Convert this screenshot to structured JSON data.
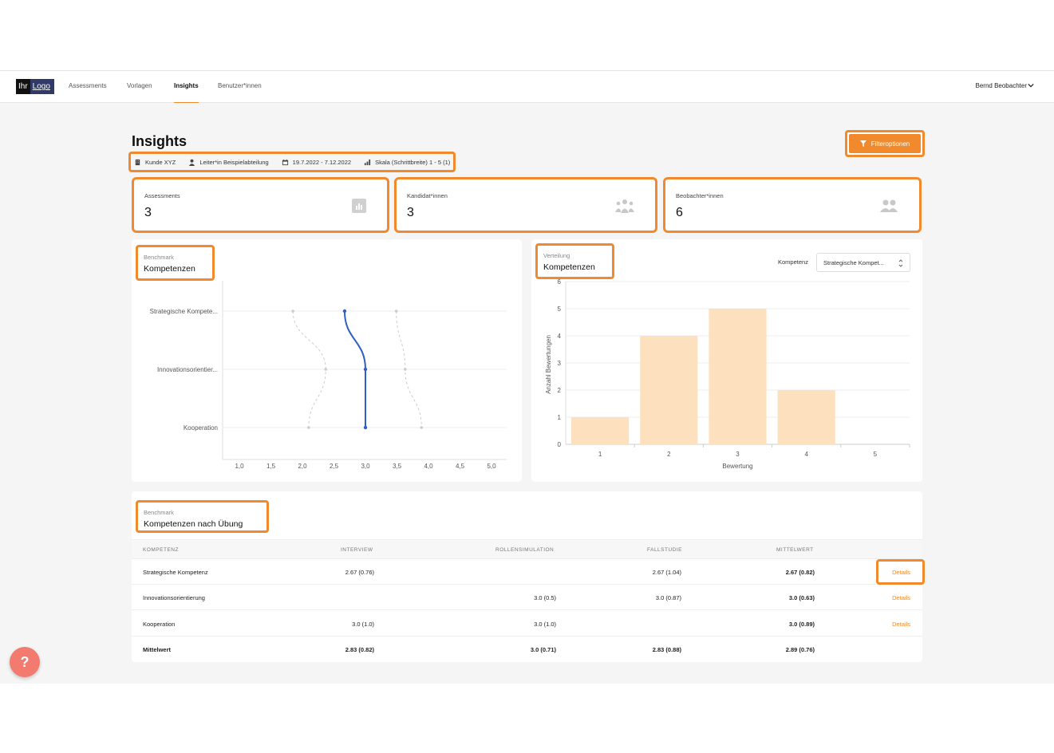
{
  "logo": {
    "part1": "Ihr",
    "part2": "Logo"
  },
  "nav": {
    "items": [
      {
        "label": "Assessments",
        "active": false
      },
      {
        "label": "Vorlagen",
        "active": false
      },
      {
        "label": "Insights",
        "active": true
      },
      {
        "label": "Benutzer*innen",
        "active": false
      }
    ],
    "user": "Bernd Beobachter"
  },
  "page": {
    "title": "Insights",
    "meta": {
      "customer": "Kunde XYZ",
      "role": "Leiter*in Beispielabteilung",
      "daterange": "19.7.2022 - 7.12.2022",
      "scale": "Skala (Schrittbreite) 1 - 5 (1)"
    },
    "filter_button": "Filteroptionen"
  },
  "stats": [
    {
      "label": "Assessments",
      "value": "3",
      "icon": "bar-chart-icon"
    },
    {
      "label": "Kandidat*innen",
      "value": "3",
      "icon": "group-icon"
    },
    {
      "label": "Beobachter*innen",
      "value": "6",
      "icon": "people-icon"
    }
  ],
  "benchmark": {
    "subtitle": "Benchmark",
    "title": "Kompetenzen"
  },
  "verteilung": {
    "subtitle": "Verteilung",
    "title": "Kompetenzen",
    "filter_label": "Kompetenz",
    "select_value": "Strategische Kompet..."
  },
  "table": {
    "subtitle": "Benchmark",
    "title": "Kompetenzen nach Übung",
    "headers": [
      "KOMPETENZ",
      "INTERVIEW",
      "ROLLENSIMULATION",
      "FALLSTUDIE",
      "MITTELWERT"
    ],
    "rows": [
      {
        "name": "Strategische Kompetenz",
        "interview": "2.67 (0.76)",
        "rollen": "",
        "fall": "2.67 (1.04)",
        "mittel": "2.67 (0.82)",
        "details": "Details"
      },
      {
        "name": "Innovationsorientierung",
        "interview": "",
        "rollen": "3.0 (0.5)",
        "fall": "3.0 (0.87)",
        "mittel": "3.0 (0.63)",
        "details": "Details"
      },
      {
        "name": "Kooperation",
        "interview": "3.0 (1.0)",
        "rollen": "3.0 (1.0)",
        "fall": "",
        "mittel": "3.0 (0.89)",
        "details": "Details"
      },
      {
        "name": "Mittelwert",
        "interview": "2.83 (0.82)",
        "rollen": "3.0 (0.71)",
        "fall": "2.83 (0.88)",
        "mittel": "2.89 (0.76)",
        "details": ""
      }
    ]
  },
  "help_label": "?",
  "colors": {
    "accent": "#f08a2c",
    "line": "#2f5fc4",
    "bar": "#fde1bf"
  },
  "chart_data": [
    {
      "type": "line",
      "categories": [
        "Strategische Kompete...",
        "Innovationsorientier...",
        "Kooperation"
      ],
      "x_ticks": [
        "1,0",
        "1,5",
        "2,0",
        "2,5",
        "3,0",
        "3,5",
        "4,0",
        "4,5",
        "5,0"
      ],
      "xlim": [
        1,
        5
      ],
      "series": [
        {
          "values": [
            2.67,
            3.0,
            3.0
          ]
        },
        {
          "values": [
            1.85,
            2.37,
            2.1
          ]
        },
        {
          "values": [
            3.49,
            3.63,
            3.89
          ]
        }
      ],
      "grid": true
    },
    {
      "type": "bar",
      "categories": [
        "1",
        "2",
        "3",
        "4",
        "5"
      ],
      "values": [
        1,
        4,
        5,
        2,
        0
      ],
      "xlabel": "Bewertung",
      "ylabel": "Anzahl Bewertungen",
      "ylim": [
        0,
        6
      ],
      "y_ticks": [
        "0",
        "1",
        "2",
        "3",
        "4",
        "5",
        "6"
      ],
      "grid": true
    }
  ]
}
